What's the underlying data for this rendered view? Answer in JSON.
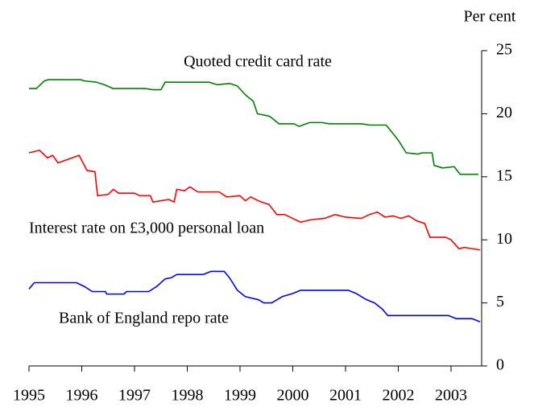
{
  "chart_data": {
    "type": "line",
    "y_axis_label": "Per cent",
    "xlim": [
      1995,
      2003.58
    ],
    "xticks": [
      1995,
      1996,
      1997,
      1998,
      1999,
      2000,
      2001,
      2002,
      2003
    ],
    "ylim": [
      0,
      25
    ],
    "yticks": [
      0,
      5,
      10,
      15,
      20,
      25
    ],
    "series": [
      {
        "name": "Quoted credit card rate",
        "color": "#008000",
        "x": [
          1995,
          1995.14,
          1995.29,
          1995.37,
          1995.98,
          1996.05,
          1996.28,
          1996.43,
          1996.59,
          1997.2,
          1997.35,
          1997.5,
          1997.58,
          1998.41,
          1998.57,
          1998.8,
          1998.95,
          1999.1,
          1999.25,
          1999.33,
          1999.56,
          1999.74,
          2000.02,
          2000.12,
          2000.32,
          2000.55,
          2000.7,
          2001.31,
          2001.46,
          2001.77,
          2002.0,
          2002.15,
          2002.38,
          2002.45,
          2002.64,
          2002.68,
          2002.84,
          2003.06,
          2003.17,
          2003.52
        ],
        "values": [
          22.0,
          22.0,
          22.6,
          22.7,
          22.7,
          22.6,
          22.5,
          22.3,
          22.0,
          22.0,
          21.9,
          21.9,
          22.5,
          22.5,
          22.3,
          22.4,
          22.2,
          21.5,
          21.0,
          20.0,
          19.8,
          19.2,
          19.2,
          19.0,
          19.3,
          19.3,
          19.2,
          19.2,
          19.1,
          19.1,
          17.9,
          16.9,
          16.8,
          16.9,
          16.9,
          15.9,
          15.7,
          15.8,
          15.2,
          15.2
        ]
      },
      {
        "name": "Interest rate on £3,000 personal loan",
        "color": "#ff0000",
        "x": [
          1995,
          1995.2,
          1995.35,
          1995.45,
          1995.55,
          1995.75,
          1995.95,
          1996.1,
          1996.25,
          1996.3,
          1996.5,
          1996.6,
          1996.7,
          1997.0,
          1997.1,
          1997.3,
          1997.35,
          1997.65,
          1997.75,
          1997.8,
          1997.95,
          1998.05,
          1998.2,
          1998.6,
          1998.75,
          1999.0,
          1999.1,
          1999.2,
          1999.4,
          1999.55,
          1999.7,
          1999.85,
          2000.0,
          2000.15,
          2000.35,
          2000.6,
          2000.8,
          2001.0,
          2001.3,
          2001.45,
          2001.6,
          2001.75,
          2001.9,
          2002.05,
          2002.2,
          2002.35,
          2002.5,
          2002.6,
          2002.9,
          2003.0,
          2003.15,
          2003.25,
          2003.55
        ],
        "values": [
          16.9,
          17.1,
          16.5,
          16.7,
          16.1,
          16.4,
          16.7,
          15.5,
          15.4,
          13.5,
          13.6,
          14.0,
          13.7,
          13.7,
          13.5,
          13.5,
          13.0,
          13.2,
          13.0,
          14.0,
          13.9,
          14.2,
          13.8,
          13.8,
          13.4,
          13.5,
          13.1,
          13.4,
          13.0,
          12.8,
          12.0,
          12.0,
          11.7,
          11.4,
          11.6,
          11.7,
          12.0,
          11.8,
          11.7,
          12.0,
          12.2,
          11.8,
          11.9,
          11.7,
          11.9,
          11.5,
          11.3,
          10.2,
          10.2,
          10.0,
          9.3,
          9.4,
          9.2
        ]
      },
      {
        "name": "Bank of England repo rate",
        "color": "#0000ff",
        "x": [
          1995,
          1995.1,
          1995.9,
          1996.05,
          1996.2,
          1996.45,
          1996.47,
          1996.8,
          1996.85,
          1997.27,
          1997.42,
          1997.58,
          1997.7,
          1997.8,
          1998.3,
          1998.45,
          1998.7,
          1998.8,
          1998.95,
          1999.1,
          1999.35,
          1999.45,
          1999.6,
          1999.8,
          2000.0,
          2000.15,
          2001.05,
          2001.2,
          2001.3,
          2001.4,
          2001.55,
          2001.7,
          2001.8,
          2002.95,
          2003.1,
          2003.4,
          2003.55
        ],
        "values": [
          6.1,
          6.6,
          6.6,
          6.3,
          5.9,
          5.9,
          5.7,
          5.7,
          5.9,
          5.9,
          6.3,
          6.9,
          7.0,
          7.25,
          7.25,
          7.5,
          7.5,
          7.0,
          6.0,
          5.5,
          5.25,
          5.0,
          5.0,
          5.5,
          5.75,
          6.0,
          6.0,
          5.75,
          5.5,
          5.25,
          5.0,
          4.5,
          4.0,
          4.0,
          3.75,
          3.75,
          3.5
        ]
      }
    ]
  }
}
